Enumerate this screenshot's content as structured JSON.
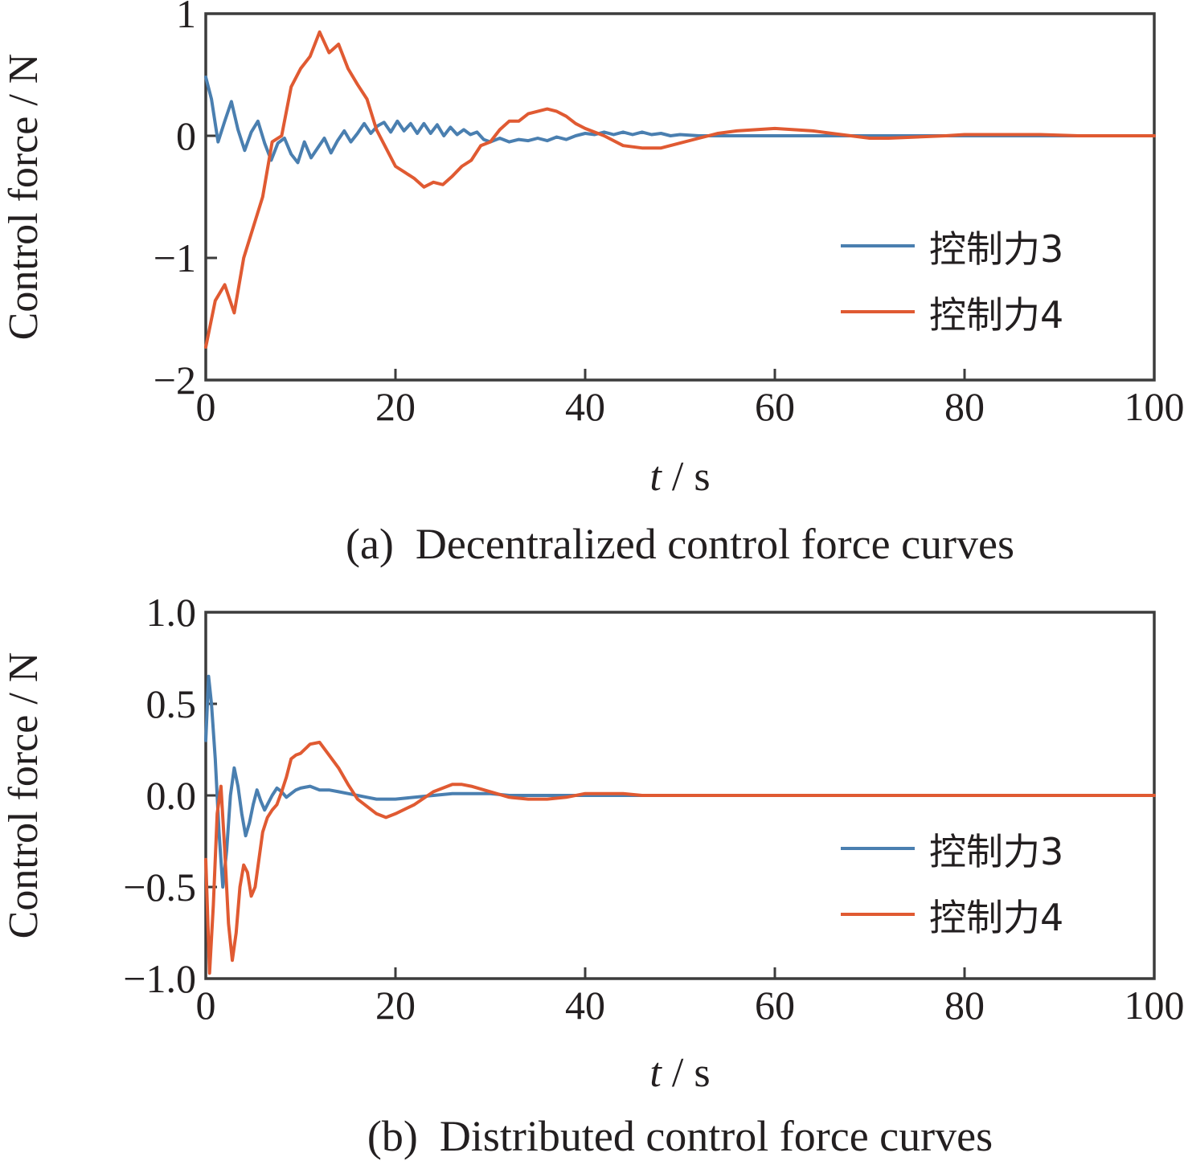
{
  "colors": {
    "series3": "#4a7fb0",
    "series4": "#e05a32",
    "axis": "#3c3c3c",
    "text": "#231f20"
  },
  "panels": [
    {
      "caption": "(a)  Decentralized control force curves",
      "xlabel_italic": "t",
      "xlabel_rest": " / s",
      "ylabel": "Control force / N",
      "legend": [
        "控制力3",
        "控制力4"
      ]
    },
    {
      "caption": "(b)  Distributed control force curves",
      "xlabel_italic": "t",
      "xlabel_rest": " / s",
      "ylabel": "Control force / N",
      "legend": [
        "控制力3",
        "控制力4"
      ]
    }
  ],
  "chart_data": [
    {
      "type": "line",
      "title": "(a)  Decentralized control force curves",
      "xlabel": "t / s",
      "ylabel": "Control force / N",
      "xlim": [
        0,
        100
      ],
      "ylim": [
        -2,
        1
      ],
      "xticks": [
        0,
        20,
        40,
        60,
        80,
        100
      ],
      "xtick_labels": [
        "0",
        "20",
        "40",
        "60",
        "80",
        "100"
      ],
      "yticks": [
        1,
        0,
        -1,
        -2
      ],
      "ytick_labels": [
        "1",
        "0",
        "−1",
        "−2"
      ],
      "grid": false,
      "legend_position": "right",
      "series": [
        {
          "name": "控制力3",
          "color": "#4a7fb0",
          "x": [
            0,
            0.6,
            1.3,
            2,
            2.7,
            3.4,
            4.1,
            4.8,
            5.5,
            6.2,
            6.9,
            7.6,
            8.3,
            9,
            9.7,
            10.4,
            11.1,
            11.8,
            12.5,
            13.2,
            13.9,
            14.6,
            15.3,
            16,
            16.7,
            17.4,
            18.1,
            18.8,
            19.5,
            20.2,
            20.9,
            21.6,
            22.3,
            23,
            23.7,
            24.4,
            25.1,
            25.8,
            26.5,
            27.2,
            27.9,
            28.6,
            29.3,
            30,
            31,
            32,
            33,
            34,
            35,
            36,
            37,
            38,
            39,
            40,
            41,
            42,
            43,
            44,
            45,
            46,
            47,
            48,
            49,
            50,
            52,
            54,
            56,
            58,
            60,
            65,
            70,
            75,
            80,
            85,
            90,
            95,
            100
          ],
          "values": [
            0.48,
            0.3,
            -0.05,
            0.12,
            0.28,
            0.05,
            -0.12,
            0.03,
            0.12,
            -0.06,
            -0.2,
            -0.06,
            -0.02,
            -0.15,
            -0.22,
            -0.05,
            -0.18,
            -0.1,
            -0.02,
            -0.14,
            -0.04,
            0.04,
            -0.05,
            0.02,
            0.1,
            0.02,
            0.08,
            0.11,
            0.03,
            0.12,
            0.04,
            0.1,
            0.02,
            0.1,
            0.02,
            0.09,
            0.0,
            0.07,
            0.01,
            0.05,
            0.01,
            0.03,
            -0.03,
            -0.05,
            -0.02,
            -0.05,
            -0.03,
            -0.04,
            -0.02,
            -0.04,
            -0.01,
            -0.03,
            0.0,
            0.02,
            0.01,
            0.03,
            0.01,
            0.03,
            0.01,
            0.03,
            0.01,
            0.02,
            0.0,
            0.01,
            0.0,
            0.0,
            0.0,
            0.0,
            0.0,
            0.0,
            0.0,
            0.0,
            0.0,
            0.0,
            0.0,
            0.0,
            0.0
          ]
        },
        {
          "name": "控制力4",
          "color": "#e05a32",
          "x": [
            0,
            1,
            2,
            3,
            4,
            5,
            6,
            7,
            8,
            9,
            10,
            11,
            12,
            13,
            14,
            15,
            16,
            17,
            18,
            19,
            20,
            21,
            22,
            23,
            24,
            25,
            26,
            27,
            28,
            29,
            30,
            31,
            32,
            33,
            34,
            35,
            36,
            37,
            38,
            39,
            40,
            42,
            44,
            46,
            48,
            50,
            52,
            54,
            56,
            58,
            60,
            62,
            64,
            66,
            68,
            70,
            72,
            75,
            78,
            80,
            84,
            88,
            92,
            96,
            100
          ],
          "values": [
            -1.73,
            -1.35,
            -1.22,
            -1.45,
            -1.0,
            -0.75,
            -0.5,
            -0.05,
            0.0,
            0.4,
            0.55,
            0.65,
            0.85,
            0.68,
            0.75,
            0.55,
            0.42,
            0.3,
            0.05,
            -0.1,
            -0.25,
            -0.3,
            -0.35,
            -0.42,
            -0.38,
            -0.4,
            -0.33,
            -0.25,
            -0.2,
            -0.08,
            -0.05,
            0.05,
            0.12,
            0.12,
            0.18,
            0.2,
            0.22,
            0.2,
            0.16,
            0.1,
            0.06,
            0.0,
            -0.08,
            -0.1,
            -0.1,
            -0.06,
            -0.02,
            0.02,
            0.04,
            0.05,
            0.06,
            0.05,
            0.04,
            0.02,
            0.0,
            -0.02,
            -0.02,
            -0.01,
            0.0,
            0.01,
            0.01,
            0.01,
            0.0,
            0.0,
            0.0
          ]
        }
      ]
    },
    {
      "type": "line",
      "title": "(b)  Distributed control force curves",
      "xlabel": "t / s",
      "ylabel": "Control force / N",
      "xlim": [
        0,
        100
      ],
      "ylim": [
        -1.0,
        1.0
      ],
      "xticks": [
        0,
        20,
        40,
        60,
        80,
        100
      ],
      "xtick_labels": [
        "0",
        "20",
        "40",
        "60",
        "80",
        "100"
      ],
      "yticks": [
        1.0,
        0.5,
        0.0,
        -0.5,
        -1.0
      ],
      "ytick_labels": [
        "1.0",
        "0.5",
        "0.0",
        "−0.5",
        "−1.0"
      ],
      "grid": false,
      "legend_position": "right",
      "series": [
        {
          "name": "控制力3",
          "color": "#4a7fb0",
          "x": [
            0,
            0.3,
            0.6,
            1.0,
            1.4,
            1.8,
            2.2,
            2.6,
            3.0,
            3.4,
            3.8,
            4.2,
            4.6,
            5.0,
            5.4,
            5.8,
            6.2,
            6.6,
            7.0,
            7.5,
            8.0,
            8.5,
            9.0,
            9.5,
            10,
            11,
            12,
            13,
            14,
            15,
            16,
            17,
            18,
            19,
            20,
            22,
            24,
            26,
            28,
            30,
            32,
            34,
            36,
            38,
            40,
            45,
            50,
            60,
            70,
            80,
            90,
            100
          ],
          "values": [
            0.3,
            0.65,
            0.5,
            0.2,
            -0.2,
            -0.5,
            -0.3,
            0.0,
            0.15,
            0.05,
            -0.1,
            -0.22,
            -0.15,
            -0.05,
            0.03,
            -0.03,
            -0.08,
            -0.04,
            0.0,
            0.04,
            0.02,
            -0.01,
            0.01,
            0.03,
            0.04,
            0.05,
            0.03,
            0.03,
            0.02,
            0.01,
            0.0,
            -0.01,
            -0.02,
            -0.02,
            -0.02,
            -0.01,
            0.0,
            0.01,
            0.01,
            0.01,
            0.0,
            0.0,
            0.0,
            0.0,
            0.0,
            0.0,
            0.0,
            0.0,
            0.0,
            0.0,
            0.0,
            0.0
          ]
        },
        {
          "name": "控制力4",
          "color": "#e05a32",
          "x": [
            0,
            0.4,
            0.8,
            1.2,
            1.6,
            2.0,
            2.4,
            2.8,
            3.2,
            3.6,
            4.0,
            4.4,
            4.8,
            5.2,
            5.6,
            6.0,
            6.5,
            7.0,
            7.5,
            8.0,
            8.5,
            9.0,
            9.5,
            10,
            11,
            12,
            13,
            14,
            15,
            16,
            17,
            18,
            19,
            20,
            22,
            24,
            26,
            27,
            28,
            30,
            32,
            34,
            36,
            38,
            40,
            42,
            44,
            46,
            50,
            55,
            60,
            70,
            80,
            90,
            100
          ],
          "values": [
            -0.35,
            -0.97,
            -0.6,
            -0.1,
            0.05,
            -0.3,
            -0.7,
            -0.9,
            -0.75,
            -0.5,
            -0.38,
            -0.42,
            -0.55,
            -0.5,
            -0.35,
            -0.2,
            -0.12,
            -0.08,
            -0.05,
            0.02,
            0.1,
            0.2,
            0.22,
            0.23,
            0.28,
            0.29,
            0.22,
            0.15,
            0.06,
            -0.02,
            -0.06,
            -0.1,
            -0.12,
            -0.1,
            -0.05,
            0.02,
            0.06,
            0.06,
            0.05,
            0.02,
            -0.01,
            -0.02,
            -0.02,
            -0.01,
            0.01,
            0.01,
            0.01,
            0.0,
            0.0,
            0.0,
            0.0,
            0.0,
            0.0,
            0.0,
            0.0
          ]
        }
      ]
    }
  ]
}
